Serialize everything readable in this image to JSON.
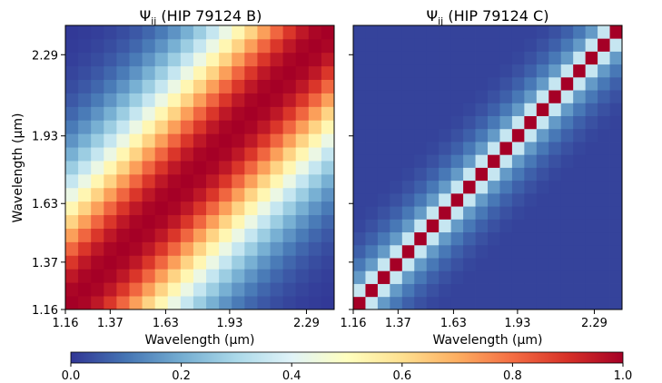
{
  "chart_data": [
    {
      "type": "heatmap",
      "title": "Ψij (HIP 79124 B)",
      "title_main": "Ψ",
      "title_sub": "ij",
      "title_rest": " (HIP 79124 B)",
      "xlabel": "Wavelength (μm)",
      "ylabel": "Wavelength (μm)",
      "xtick_labels": [
        "1.16",
        "1.37",
        "1.63",
        "1.93",
        "2.29"
      ],
      "ytick_labels": [
        "1.16",
        "1.37",
        "1.63",
        "1.93",
        "2.29"
      ],
      "xlim": [
        1.16,
        2.42
      ],
      "ylim": [
        1.16,
        2.42
      ],
      "grid_size": 21,
      "matrix_rule": "correlation matrix Psi_ij = exp(-0.5 * (|i-j| / 6.2)^2)",
      "correlation_length_pixels": 6.2,
      "diagonal_value": 1.0,
      "colorscale": "RdYlBu_r"
    },
    {
      "type": "heatmap",
      "title": "Ψij (HIP 79124 C)",
      "title_main": "Ψ",
      "title_sub": "ij",
      "title_rest": " (HIP 79124 C)",
      "xlabel": "Wavelength (μm)",
      "ylabel": "",
      "xtick_labels": [
        "1.16",
        "1.37",
        "1.63",
        "1.93",
        "2.29"
      ],
      "ytick_labels": [],
      "xlim": [
        1.16,
        2.42
      ],
      "ylim": [
        1.16,
        2.42
      ],
      "grid_size": 22,
      "matrix_rule": "Psi_ij = 1 on diagonal, 0.35 adjacent, falling to ~0.02 far off-diagonal",
      "diagonal_value": 1.0,
      "adjacent_value": 0.35,
      "floor_value": 0.02,
      "colorscale": "RdYlBu_r"
    }
  ],
  "colorbar": {
    "ticks": [
      "0.0",
      "0.2",
      "0.4",
      "0.6",
      "0.8",
      "1.0"
    ],
    "range": [
      0.0,
      1.0
    ],
    "colorscale": "RdYlBu_r",
    "stops": [
      "#313695",
      "#4575b4",
      "#74add1",
      "#abd9e9",
      "#e0f3f8",
      "#ffffbf",
      "#fee090",
      "#fdae61",
      "#f46d43",
      "#d73027",
      "#a50026"
    ]
  }
}
